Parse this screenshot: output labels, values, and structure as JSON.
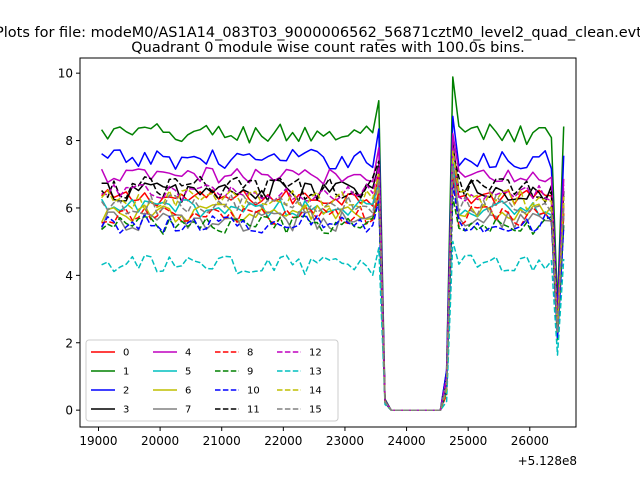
{
  "chart_data": {
    "type": "line",
    "suptitle": "Plots for file: modeM0/AS1A14_083T03_9000006562_56871cztM0_level2_quad_clean.evt",
    "title": "Quadrant 0 module wise count rates with 100.0s bins.",
    "xlabel": "",
    "ylabel": "",
    "x_offset_label": "+5.128e8",
    "xlim": [
      18700,
      26750
    ],
    "ylim": [
      -0.5,
      10.45
    ],
    "xticks": [
      19000,
      20000,
      21000,
      22000,
      23000,
      24000,
      25000,
      26000
    ],
    "xtick_labels": [
      "19000",
      "20000",
      "21000",
      "22000",
      "23000",
      "24000",
      "25000",
      "26000"
    ],
    "yticks": [
      0,
      2,
      4,
      6,
      8,
      10
    ],
    "ytick_labels": [
      "0",
      "2",
      "4",
      "6",
      "8",
      "10"
    ],
    "time_grid": {
      "start": 19050,
      "step": 100,
      "count": 76
    },
    "series": [
      {
        "name": "0",
        "color": "#ff0000",
        "dash": false,
        "base": 6.3,
        "noise": 0.25
      },
      {
        "name": "1",
        "color": "#008000",
        "dash": false,
        "base": 8.2,
        "noise": 0.32
      },
      {
        "name": "2",
        "color": "#0000ff",
        "dash": false,
        "base": 7.45,
        "noise": 0.3
      },
      {
        "name": "3",
        "color": "#000000",
        "dash": false,
        "base": 6.5,
        "noise": 0.35
      },
      {
        "name": "4",
        "color": "#bf00bf",
        "dash": false,
        "base": 6.95,
        "noise": 0.25
      },
      {
        "name": "5",
        "color": "#00bfbf",
        "dash": false,
        "base": 6.0,
        "noise": 0.28
      },
      {
        "name": "6",
        "color": "#bfbf00",
        "dash": false,
        "base": 5.85,
        "noise": 0.3
      },
      {
        "name": "7",
        "color": "#808080",
        "dash": false,
        "base": 5.6,
        "noise": 0.3
      },
      {
        "name": "8",
        "color": "#ff0000",
        "dash": true,
        "base": 5.75,
        "noise": 0.3
      },
      {
        "name": "9",
        "color": "#008000",
        "dash": true,
        "base": 5.5,
        "noise": 0.28
      },
      {
        "name": "10",
        "color": "#0000ff",
        "dash": true,
        "base": 5.55,
        "noise": 0.3
      },
      {
        "name": "11",
        "color": "#000000",
        "dash": true,
        "base": 6.6,
        "noise": 0.35
      },
      {
        "name": "12",
        "color": "#bf00bf",
        "dash": true,
        "base": 6.45,
        "noise": 0.25
      },
      {
        "name": "13",
        "color": "#00bfbf",
        "dash": true,
        "base": 4.3,
        "noise": 0.3
      },
      {
        "name": "14",
        "color": "#bfbf00",
        "dash": true,
        "base": 6.25,
        "noise": 0.3
      },
      {
        "name": "15",
        "color": "#808080",
        "dash": true,
        "base": 6.1,
        "noise": 0.3
      }
    ],
    "profile": {
      "gap_start": 23700,
      "gap_end": 24600,
      "gap_value": 0.0,
      "peak_before": {
        "time": 23550,
        "factor": 1.12
      },
      "drop_values": [
        {
          "time": 23650,
          "factor": 0.04
        }
      ],
      "rise_values": [
        {
          "time": 24650,
          "factor": 0.12
        },
        {
          "time": 24750,
          "factor": 1.2
        }
      ],
      "final": {
        "time": 26450,
        "factor": 0.38
      }
    },
    "legend": {
      "location": "lower-left",
      "columns": 4
    }
  }
}
